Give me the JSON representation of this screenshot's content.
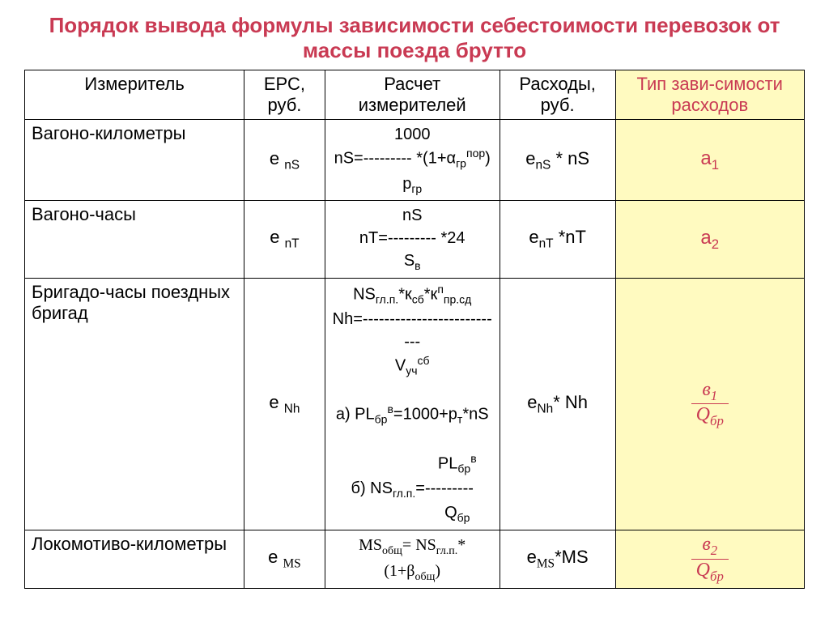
{
  "title": "Порядок вывода формулы зависимости себестоимости перевозок от массы поезда брутто",
  "headers": {
    "col1": "Измеритель",
    "col2": "ЕРС, руб.",
    "col3": "Расчет измерителей",
    "col4": "Расходы, руб.",
    "col5": "Тип зави-симости расходов"
  },
  "rows": {
    "r1": {
      "measure": "Вагоно-километры",
      "erc_sub": "nS",
      "calc_top": "1000",
      "calc_mid_left": "nS=",
      "calc_mid_dash": "---------",
      "calc_mid_right_alpha": "гр",
      "calc_mid_right_sup": "пор",
      "calc_bot": "гр",
      "cost_sub": "nS",
      "cost_rest": " * nS",
      "dep": "а",
      "dep_sub": "1"
    },
    "r2": {
      "measure": "Вагоно-часы",
      "erc_sub": "nT",
      "calc_top": "nS",
      "calc_mid_left": "nT=",
      "calc_mid_dash": "---------",
      "calc_mid_right": " *24",
      "calc_bot_sub": "в",
      "cost_sub": "nT",
      "cost_rest": " *nT",
      "dep": "а",
      "dep_sub": "2"
    },
    "r3": {
      "measure": "Бригадо-часы поездных бригад",
      "erc_sub": "Nh",
      "calc_line1_left": "NS",
      "calc_line1_sub1": "гл.п.",
      "calc_line1_mid": "*к",
      "calc_line1_sub2": "сб",
      "calc_line1_mid2": "*к",
      "calc_line1_sup": "п",
      "calc_line1_sub3": "пр.сд",
      "calc_line2_left": "Nh=",
      "calc_line2_dash": "---------------------------",
      "calc_line3_v": "V",
      "calc_line3_sub": "уч",
      "calc_line3_sup": "сб",
      "calc_line_a": "а) PL",
      "calc_line_a_sub": "бр",
      "calc_line_a_sup": "в",
      "calc_line_a_rest": "=1000+р",
      "calc_line_a_sub2": "т",
      "calc_line_a_end": "*nS",
      "calc_line_b_num_left": "PL",
      "calc_line_b_num_sub": "бр",
      "calc_line_b_num_sup": "в",
      "calc_line_b_left": "б) NS",
      "calc_line_b_sub": "гл.п.",
      "calc_line_b_eq": "=",
      "calc_line_b_dash": "---------",
      "calc_line_b_den": "Q",
      "calc_line_b_den_sub": "бр",
      "cost_sub": "Nh",
      "cost_rest": "* Nh",
      "dep_num": "в",
      "dep_num_sub": "1",
      "dep_den": "Q",
      "dep_den_sub": "бр"
    },
    "r4": {
      "measure": "Локомотиво-километры",
      "erc_sub": "MS",
      "calc_left": "MS",
      "calc_sub1": "общ",
      "calc_mid": "= NS",
      "calc_sub2": "гл.п.",
      "calc_mid2": "*(1+β",
      "calc_sub3": "общ",
      "calc_end": ")",
      "cost_sub": "MS",
      "cost_rest": "*MS",
      "dep_num": "в",
      "dep_num_sub": "2",
      "dep_den": "Q",
      "dep_den_sub": "бр"
    }
  },
  "style": {
    "title_color": "#c93a53",
    "tip_bg": "#fffac0",
    "border_color": "#000000",
    "base_fontsize": 22
  }
}
